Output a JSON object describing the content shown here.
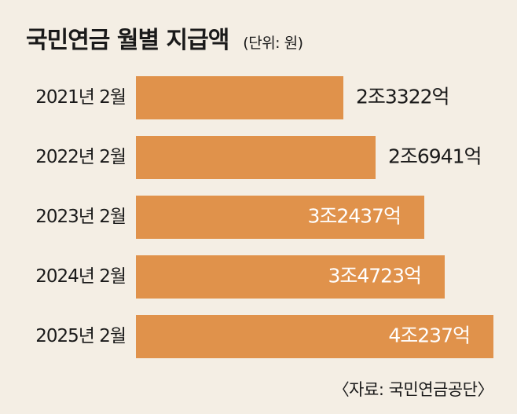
{
  "header": {
    "title": "국민연금 월별 지급액",
    "unit": "(단위: 원)"
  },
  "source": "〈자료: 국민연금공단〉",
  "chart_data": {
    "type": "bar",
    "orientation": "horizontal",
    "categories": [
      "2021년 2월",
      "2022년 2월",
      "2023년 2월",
      "2024년 2월",
      "2025년 2월"
    ],
    "values": [
      23322,
      26941,
      32437,
      34723,
      40237
    ],
    "value_labels": [
      "2조3322억",
      "2조6941억",
      "3조2437억",
      "3조4723억",
      "4조237억"
    ],
    "value_unit": "억원",
    "colors": {
      "bar": "#e0924b",
      "background": "#f4eee4"
    }
  }
}
